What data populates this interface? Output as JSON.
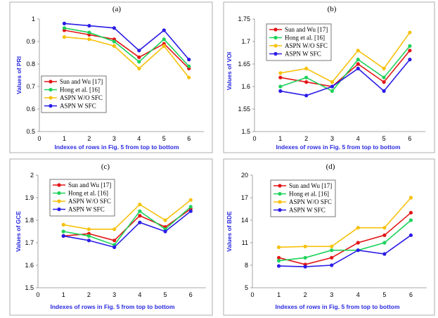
{
  "colors": {
    "sun": "#e31414",
    "hong": "#1ed25a",
    "aspn_wo": "#f7c10c",
    "aspn_w": "#2a1ce6",
    "axis_label": "#2a2ae0"
  },
  "chart_data": [
    {
      "type": "line",
      "panel": "(a)",
      "xlabel": "Indexes of rows in Fig. 5 from top to bottom",
      "ylabel": "Values of PRI",
      "x_ticks": [
        "0",
        "1",
        "2",
        "3",
        "4",
        "5",
        "6"
      ],
      "y_ticks": [
        "0.5",
        "0.6",
        "0.7",
        "0.8",
        "0.9",
        "1"
      ],
      "xlim": [
        0,
        6.6
      ],
      "ylim": [
        0.5,
        1
      ],
      "legend": "lower-left",
      "x": [
        1,
        2,
        3,
        4,
        5,
        6
      ],
      "series": [
        {
          "name": "Sun and Wu [17]",
          "color": "#e31414",
          "values": [
            0.95,
            0.93,
            0.91,
            0.83,
            0.89,
            0.78
          ]
        },
        {
          "name": "Hong et al. [16]",
          "color": "#1ed25a",
          "values": [
            0.96,
            0.94,
            0.9,
            0.81,
            0.91,
            0.79
          ]
        },
        {
          "name": "ASPN W/O SFC",
          "color": "#f7c10c",
          "values": [
            0.92,
            0.91,
            0.88,
            0.78,
            0.88,
            0.74
          ]
        },
        {
          "name": "ASPN W SFC",
          "color": "#2a1ce6",
          "values": [
            0.98,
            0.97,
            0.96,
            0.86,
            0.95,
            0.82
          ]
        }
      ]
    },
    {
      "type": "line",
      "panel": "(b)",
      "xlabel": "Indexes of rows in Fig. 5 from top to bottom",
      "ylabel": "Values of VOI",
      "x_ticks": [
        "0",
        "1",
        "2",
        "3",
        "4",
        "5",
        "6"
      ],
      "y_ticks": [
        "1.5",
        "1.55",
        "1.6",
        "1.65",
        "1.7",
        "1.75"
      ],
      "xlim": [
        0,
        6.6
      ],
      "ylim": [
        1.5,
        1.75
      ],
      "legend": "top-left",
      "x": [
        1,
        2,
        3,
        4,
        5,
        6
      ],
      "series": [
        {
          "name": "Sun and Wu [17]",
          "color": "#e31414",
          "values": [
            1.62,
            1.61,
            1.6,
            1.65,
            1.61,
            1.68
          ]
        },
        {
          "name": "Hong et al. [16]",
          "color": "#1ed25a",
          "values": [
            1.6,
            1.62,
            1.59,
            1.66,
            1.62,
            1.69
          ]
        },
        {
          "name": "ASPN W/O SFC",
          "color": "#f7c10c",
          "values": [
            1.63,
            1.64,
            1.61,
            1.68,
            1.64,
            1.72
          ]
        },
        {
          "name": "ASPN W SFC",
          "color": "#2a1ce6",
          "values": [
            1.59,
            1.58,
            1.6,
            1.64,
            1.59,
            1.66
          ]
        }
      ]
    },
    {
      "type": "line",
      "panel": "(c)",
      "xlabel": "Indexes of rows in Fig. 5 from top to bottom",
      "ylabel": "Values of GCE",
      "x_ticks": [
        "0",
        "1",
        "2",
        "3",
        "4",
        "5",
        "6"
      ],
      "y_ticks": [
        "1.5",
        "1.6",
        "1.7",
        "1.8",
        "1.9",
        "2"
      ],
      "xlim": [
        0,
        6.6
      ],
      "ylim": [
        1.5,
        2
      ],
      "legend": "top-left",
      "x": [
        1,
        2,
        3,
        4,
        5,
        6
      ],
      "series": [
        {
          "name": "Sun and Wu [17]",
          "color": "#e31414",
          "values": [
            1.73,
            1.74,
            1.71,
            1.82,
            1.77,
            1.85
          ]
        },
        {
          "name": "Hong et al. [16]",
          "color": "#1ed25a",
          "values": [
            1.75,
            1.73,
            1.69,
            1.84,
            1.76,
            1.86
          ]
        },
        {
          "name": "ASPN W/O SFC",
          "color": "#f7c10c",
          "values": [
            1.78,
            1.76,
            1.76,
            1.87,
            1.8,
            1.89
          ]
        },
        {
          "name": "ASPN W SFC",
          "color": "#2a1ce6",
          "values": [
            1.73,
            1.71,
            1.68,
            1.79,
            1.75,
            1.84
          ]
        }
      ]
    },
    {
      "type": "line",
      "panel": "(d)",
      "xlabel": "Indexes of rows in Fig. 5 from top to bottom",
      "ylabel": "Values of BDE",
      "x_ticks": [
        "0",
        "1",
        "2",
        "3",
        "4",
        "5",
        "6"
      ],
      "y_ticks": [
        "5",
        "8",
        "11",
        "14",
        "17",
        "20"
      ],
      "xlim": [
        0,
        6.6
      ],
      "ylim": [
        5,
        20
      ],
      "legend": "top-left",
      "x": [
        1,
        2,
        3,
        4,
        5,
        6
      ],
      "series": [
        {
          "name": "Sun and Wu [17]",
          "color": "#e31414",
          "values": [
            9.0,
            8.1,
            9.0,
            11.0,
            12.0,
            15.0
          ]
        },
        {
          "name": "Hong et al. [16]",
          "color": "#1ed25a",
          "values": [
            8.6,
            9.0,
            10.0,
            10.0,
            11.0,
            14.0
          ]
        },
        {
          "name": "ASPN W/O SFC",
          "color": "#f7c10c",
          "values": [
            10.4,
            10.5,
            10.5,
            13.0,
            13.0,
            17.0
          ]
        },
        {
          "name": "ASPN W SFC",
          "color": "#2a1ce6",
          "values": [
            7.9,
            7.8,
            8.0,
            10.0,
            9.5,
            12.0
          ]
        }
      ]
    }
  ]
}
